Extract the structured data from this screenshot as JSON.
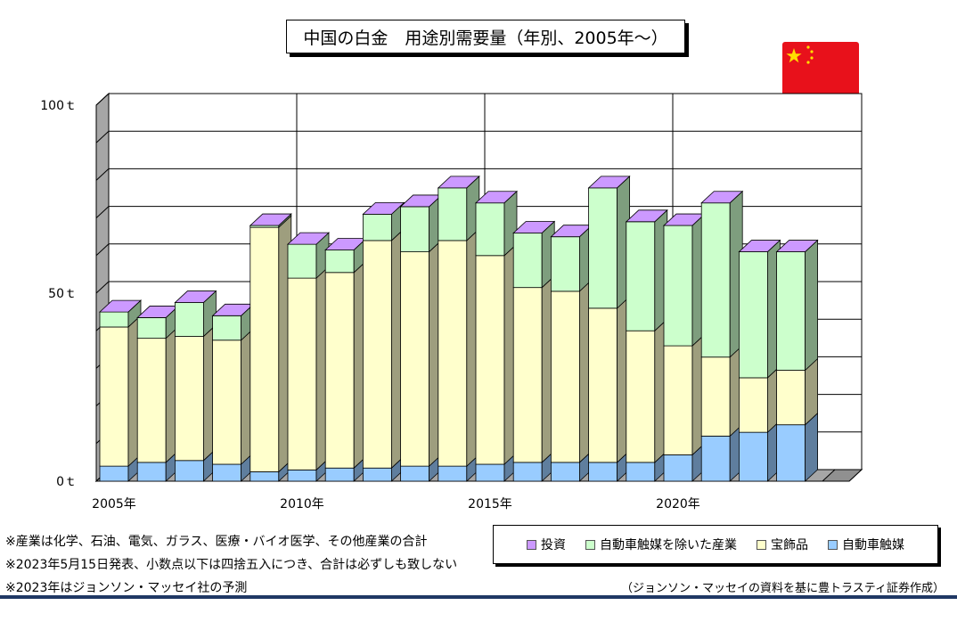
{
  "title": "中国の白金　用途別需要量（年別、2005年～）",
  "flag": {
    "icon": "china-flag-icon",
    "field": "#e8111b",
    "star": "#ffde00"
  },
  "colors": {
    "automotive": "#99ccff",
    "jewelry": "#ffffcc",
    "industrial": "#ccffcc",
    "investment": "#cc99ff"
  },
  "chart_data": {
    "type": "bar",
    "stacked": true,
    "three_d": true,
    "categories": [
      "2005",
      "2006",
      "2007",
      "2008",
      "2009",
      "2010",
      "2011",
      "2012",
      "2013",
      "2014",
      "2015",
      "2016",
      "2017",
      "2018",
      "2019",
      "2020",
      "2021",
      "2022",
      "2023"
    ],
    "x_tick_labels": [
      "2005年",
      "2010年",
      "2015年",
      "2020年"
    ],
    "y_tick_labels": [
      "0ｔ",
      "50ｔ",
      "100ｔ"
    ],
    "ylim": [
      0,
      100
    ],
    "grid": true,
    "legend_position": "bottom-right",
    "series": [
      {
        "name": "自動車触媒",
        "key": "automotive",
        "values": [
          4,
          5,
          5.5,
          4.5,
          2.5,
          3,
          3.5,
          3.5,
          4,
          4,
          4.5,
          5,
          5,
          5,
          5,
          7,
          12,
          13,
          15
        ]
      },
      {
        "name": "宝飾品",
        "key": "jewelry",
        "values": [
          37,
          33,
          33,
          33,
          65,
          51,
          52,
          60.5,
          57,
          60,
          55.5,
          46.5,
          45.5,
          41,
          35,
          29,
          21,
          14.5,
          14.5
        ]
      },
      {
        "name": "自動車触媒を除いた産業",
        "key": "industrial",
        "values": [
          4,
          5.5,
          9,
          6.5,
          0.5,
          9,
          6,
          7,
          12,
          14,
          14,
          14.5,
          14.5,
          32,
          29,
          32,
          41,
          33.5,
          31.5
        ]
      },
      {
        "name": "投資",
        "key": "investment",
        "values": [
          0,
          0,
          0,
          0,
          0,
          0,
          0,
          0,
          0,
          0,
          0,
          0,
          0,
          0,
          0,
          0,
          0,
          0,
          0
        ]
      }
    ]
  },
  "legend": [
    {
      "label": "投資",
      "key": "investment"
    },
    {
      "label": "自動車触媒を除いた産業",
      "key": "industrial"
    },
    {
      "label": "宝飾品",
      "key": "jewelry"
    },
    {
      "label": "自動車触媒",
      "key": "automotive"
    }
  ],
  "notes": [
    "※産業は化学、石油、電気、ガラス、医療・バイオ医学、その他産業の合計",
    "※2023年5月15日発表、小数点以下は四捨五入につき、合計は必ずしも致しない",
    "※2023年はジョンソン・マッセイ社の予測"
  ],
  "source": "（ジョンソン・マッセイの資料を基に豊トラスティ証券作成）"
}
